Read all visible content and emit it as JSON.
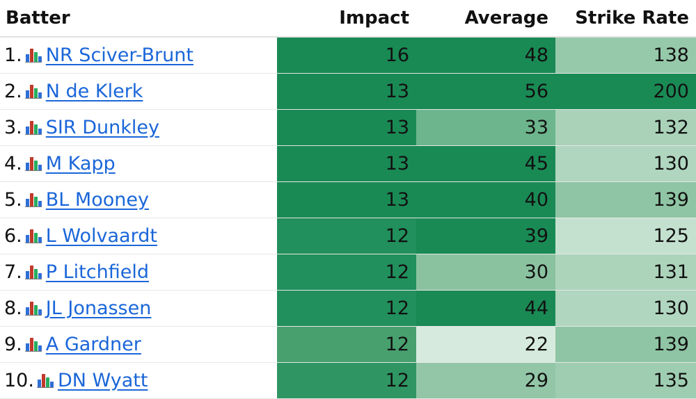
{
  "header": {
    "batter": "Batter",
    "impact": "Impact",
    "average": "Average",
    "strike_rate": "Strike Rate"
  },
  "rows": [
    {
      "rank": "1.",
      "name": "NR Sciver-Brunt",
      "impact": "16",
      "average": "48",
      "strike_rate": "138",
      "impact_color": "#1a8a55",
      "average_color": "#1a8a55",
      "sr_color": "#96c9aa"
    },
    {
      "rank": "2.",
      "name": "N de Klerk",
      "impact": "13",
      "average": "56",
      "strike_rate": "200",
      "impact_color": "#1a8a55",
      "average_color": "#1a8a55",
      "sr_color": "#1a8a55"
    },
    {
      "rank": "3.",
      "name": "SIR Dunkley",
      "impact": "13",
      "average": "33",
      "strike_rate": "132",
      "impact_color": "#1a8a55",
      "average_color": "#6db58c",
      "sr_color": "#a9d2b9"
    },
    {
      "rank": "4.",
      "name": "M Kapp",
      "impact": "13",
      "average": "45",
      "strike_rate": "130",
      "impact_color": "#1a8a55",
      "average_color": "#1a8a55",
      "sr_color": "#b0d6bf"
    },
    {
      "rank": "5.",
      "name": "BL Mooney",
      "impact": "13",
      "average": "40",
      "strike_rate": "139",
      "impact_color": "#1a8a55",
      "average_color": "#1a8a55",
      "sr_color": "#8fc5a4"
    },
    {
      "rank": "6.",
      "name": "L Wolvaardt",
      "impact": "12",
      "average": "39",
      "strike_rate": "125",
      "impact_color": "#21905c",
      "average_color": "#1a8a55",
      "sr_color": "#c4e1cf"
    },
    {
      "rank": "7.",
      "name": "P Litchfield",
      "impact": "12",
      "average": "30",
      "strike_rate": "131",
      "impact_color": "#21905c",
      "average_color": "#8ac2a0",
      "sr_color": "#acd4bb"
    },
    {
      "rank": "8.",
      "name": "JL Jonassen",
      "impact": "12",
      "average": "44",
      "strike_rate": "130",
      "impact_color": "#21905c",
      "average_color": "#1a8a55",
      "sr_color": "#b0d6bf"
    },
    {
      "rank": "9.",
      "name": "A Gardner",
      "impact": "12",
      "average": "22",
      "strike_rate": "139",
      "impact_color": "#48a06f",
      "average_color": "#d6ebdd",
      "sr_color": "#8fc5a4"
    },
    {
      "rank": "10.",
      "name": "DN Wyatt",
      "impact": "12",
      "average": "29",
      "strike_rate": "135",
      "impact_color": "#2f9663",
      "average_color": "#92c6a7",
      "sr_color": "#9fcdb1"
    }
  ]
}
